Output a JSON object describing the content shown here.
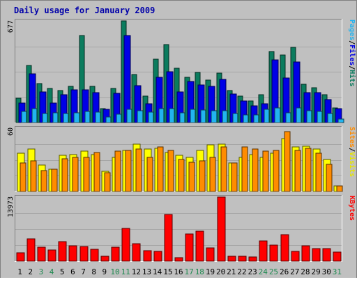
{
  "chart_data": {
    "type": "bar",
    "title": "Daily usage for January 2009",
    "x": [
      "1",
      "2",
      "3",
      "4",
      "5",
      "6",
      "7",
      "8",
      "9",
      "10",
      "11",
      "12",
      "13",
      "14",
      "15",
      "16",
      "17",
      "18",
      "19",
      "20",
      "21",
      "22",
      "23",
      "24",
      "25",
      "26",
      "27",
      "28",
      "29",
      "30",
      "31"
    ],
    "weekend_days": [
      "3",
      "4",
      "10",
      "11",
      "17",
      "18",
      "24",
      "25",
      "31"
    ],
    "panels": [
      {
        "id": "hits-files-pages",
        "max_label": "677",
        "ylim": [
          0,
          677
        ],
        "series": [
          {
            "name": "Hits",
            "color": "#0b7c5e",
            "values": [
              160,
              380,
              258,
              225,
              215,
              240,
              578,
              243,
              94,
              229,
              677,
              319,
              175,
              424,
              518,
              364,
              301,
              335,
              283,
              330,
              215,
              175,
              144,
              185,
              472,
              450,
              502,
              255,
              231,
              185,
              99
            ]
          },
          {
            "name": "Files",
            "color": "#0000e6",
            "values": [
              130,
              325,
              203,
              130,
              187,
              217,
              218,
              198,
              86,
              197,
              581,
              245,
              127,
              300,
              337,
              202,
              273,
              250,
              239,
              289,
              190,
              144,
              109,
              125,
              417,
              296,
              402,
              201,
              201,
              155,
              95
            ]
          },
          {
            "name": "Pages",
            "color": "#22b4f0",
            "values": [
              75,
              95,
              62,
              64,
              58,
              63,
              75,
              70,
              35,
              55,
              90,
              80,
              70,
              92,
              91,
              66,
              90,
              84,
              81,
              78,
              62,
              50,
              53,
              90,
              96,
              67,
              99,
              80,
              75,
              60,
              25
            ]
          }
        ],
        "legend": [
          "Pages",
          "/",
          "Files",
          "/",
          "Hits"
        ]
      },
      {
        "id": "visits-sites",
        "max_label": "60",
        "ylim": [
          0,
          60
        ],
        "series": [
          {
            "name": "Visits",
            "color": "#ffff00",
            "values": [
              36,
              40,
              25,
              21,
              34,
              35,
              38,
              35,
              19,
              32,
              39,
              45,
              40,
              41,
              37,
              34,
              32,
              39,
              44,
              45,
              27,
              32,
              35,
              32,
              36,
              50,
              42,
              43,
              40,
              30,
              5
            ]
          },
          {
            "name": "Sites",
            "color": "#ff8c00",
            "values": [
              27,
              29,
              20,
              21,
              31,
              32,
              32,
              37,
              18,
              38,
              39,
              40,
              32,
              42,
              39,
              30,
              28,
              29,
              32,
              42,
              27,
              42,
              40,
              38,
              39,
              57,
              39,
              41,
              36,
              26,
              5
            ]
          }
        ],
        "legend": [
          "Sites",
          "/",
          "Visits"
        ]
      },
      {
        "id": "kbytes",
        "max_label": "13973",
        "ylim": [
          0,
          13973
        ],
        "series": [
          {
            "name": "KBytes",
            "color": "#ff0000",
            "values": [
              1750,
              4800,
              3000,
              2450,
              4200,
              3400,
              3200,
              2600,
              1050,
              3000,
              7100,
              3800,
              2300,
              2200,
              10200,
              750,
              5900,
              6600,
              2900,
              13973,
              1050,
              1000,
              950,
              4400,
              3500,
              5700,
              2200,
              3300,
              2800,
              2700,
              2000
            ]
          }
        ],
        "legend": [
          "KBytes"
        ]
      }
    ]
  }
}
